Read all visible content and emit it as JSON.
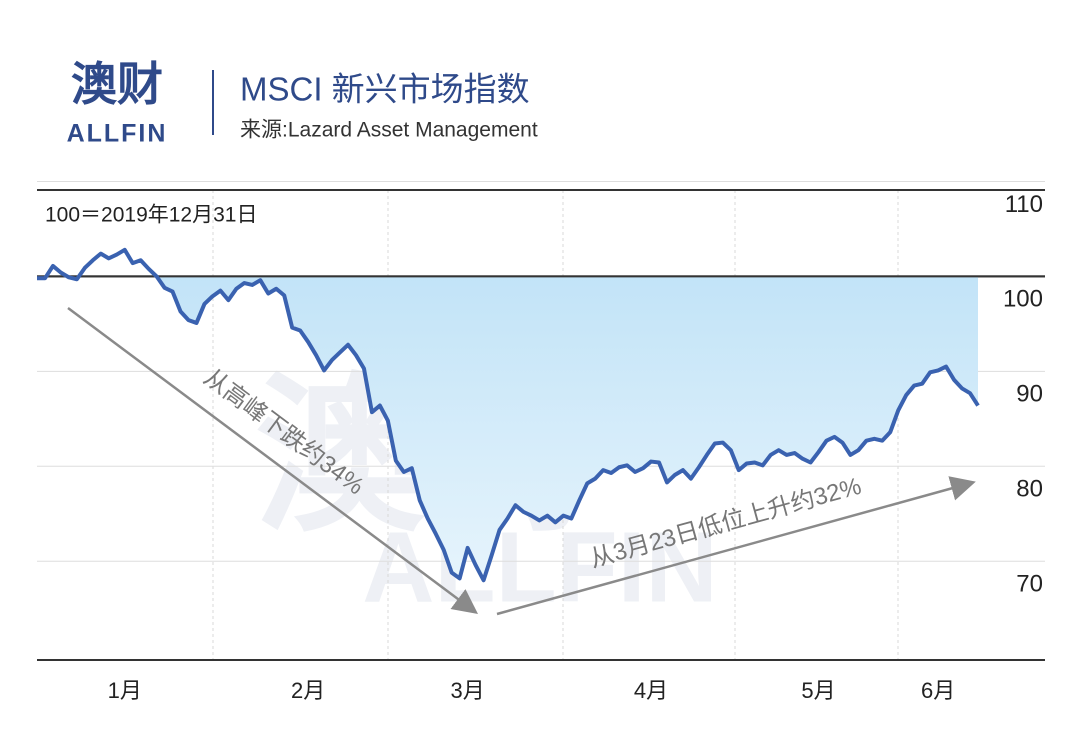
{
  "header": {
    "logo": "澳财",
    "logo_sub": "ALLFIN",
    "title": "MSCI 新兴市场指数",
    "source": "来源:Lazard Asset Management"
  },
  "chart_data": {
    "type": "line",
    "note": "100＝2019年12月31日",
    "categories": [
      null,
      null,
      null,
      null,
      null,
      null,
      null,
      null,
      null,
      null,
      null,
      "1月",
      null,
      null,
      null,
      null,
      null,
      null,
      null,
      null,
      null,
      null,
      null,
      null,
      null,
      null,
      null,
      null,
      null,
      null,
      null,
      null,
      null,
      null,
      "2月",
      null,
      null,
      null,
      null,
      null,
      null,
      null,
      null,
      null,
      null,
      null,
      null,
      null,
      null,
      null,
      null,
      null,
      null,
      null,
      "3月",
      null,
      null,
      null,
      null,
      null,
      null,
      null,
      null,
      null,
      null,
      null,
      null,
      null,
      null,
      null,
      null,
      null,
      null,
      null,
      null,
      null,
      null,
      "4月",
      null,
      null,
      null,
      null,
      null,
      null,
      null,
      null,
      null,
      null,
      null,
      null,
      null,
      null,
      null,
      null,
      null,
      null,
      null,
      null,
      "5月",
      null,
      null,
      null,
      null,
      null,
      null,
      null,
      null,
      null,
      null,
      null,
      null,
      null,
      null,
      "6月",
      null,
      null,
      null,
      null,
      null
    ],
    "series": [
      {
        "name": "MSCI 新兴市场指数",
        "color": "#3a62b0",
        "values": [
          99.8,
          99.8,
          101.1,
          100.4,
          99.9,
          99.7,
          100.9,
          101.7,
          102.4,
          101.9,
          102.3,
          102.8,
          101.4,
          101.7,
          100.8,
          100,
          98.8,
          98.4,
          96.3,
          95.4,
          95.1,
          97.1,
          97.9,
          98.5,
          97.5,
          98.7,
          99.3,
          99.1,
          99.6,
          98.2,
          98.7,
          98,
          94.6,
          94.3,
          93.1,
          91.7,
          90.1,
          91.2,
          92,
          92.8,
          91.7,
          90.3,
          85.7,
          86.4,
          84.8,
          80.6,
          79.4,
          79.8,
          76.4,
          74.5,
          72.9,
          71.2,
          68.8,
          68.2,
          71.4,
          69.6,
          68,
          70.6,
          73.3,
          74.5,
          75.9,
          75.2,
          74.8,
          74.3,
          74.8,
          74.1,
          74.8,
          74.5,
          76.4,
          78.2,
          78.7,
          79.6,
          79.3,
          79.9,
          80.1,
          79.4,
          79.8,
          80.5,
          80.4,
          78.3,
          79.1,
          79.6,
          78.7,
          79.9,
          81.2,
          82.4,
          82.5,
          81.7,
          79.6,
          80.3,
          80.4,
          80.1,
          81.2,
          81.7,
          81.2,
          81.4,
          80.8,
          80.4,
          81.5,
          82.7,
          83.1,
          82.5,
          81.2,
          81.7,
          82.7,
          82.9,
          82.7,
          83.6,
          85.9,
          87.5,
          88.5,
          88.7,
          89.9,
          90.1,
          90.5,
          89.1,
          88.2,
          87.7,
          86.4
        ]
      }
    ],
    "ylim": [
      59.6,
      109.1
    ],
    "yticks": [
      70,
      80,
      90,
      100,
      110
    ],
    "reference": 100,
    "annotations": [
      "从高峰下跌约34%",
      "从3月23日低位上升约32%"
    ]
  }
}
